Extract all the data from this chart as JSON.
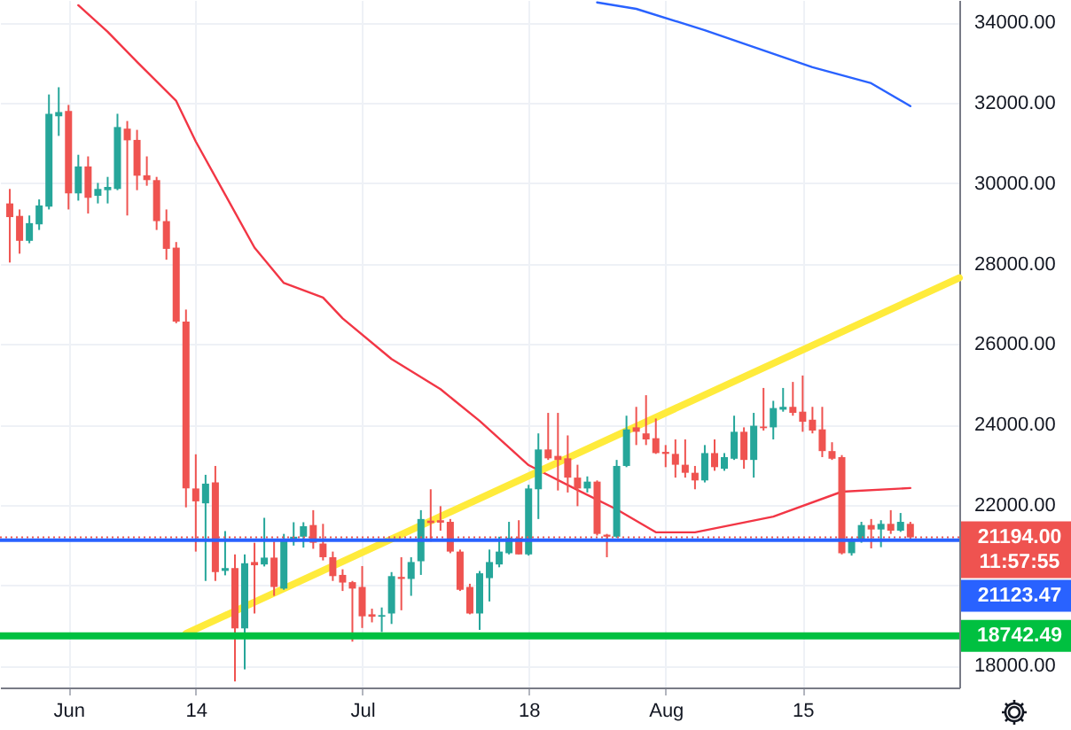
{
  "chart_data": {
    "type": "candlestick",
    "x": [
      "--05-26",
      "--05-27",
      "--05-28",
      "--05-29",
      "--05-30",
      "--05-31",
      "--06-01",
      "--06-02",
      "--06-03",
      "--06-04",
      "--06-05",
      "--06-06",
      "--06-07",
      "--06-08",
      "--06-09",
      "--06-10",
      "--06-11",
      "--06-12",
      "--06-13",
      "--06-14",
      "--06-15",
      "--06-16",
      "--06-17",
      "--06-18",
      "--06-19",
      "--06-20",
      "--06-21",
      "--06-22",
      "--06-23",
      "--06-24",
      "--06-25",
      "--06-26",
      "--06-27",
      "--06-28",
      "--06-29",
      "--06-30",
      "--07-01",
      "--07-02",
      "--07-03",
      "--07-04",
      "--07-05",
      "--07-06",
      "--07-07",
      "--07-08",
      "--07-09",
      "--07-10",
      "--07-11",
      "--07-12",
      "--07-13",
      "--07-14",
      "--07-15",
      "--07-16",
      "--07-17",
      "--07-18",
      "--07-19",
      "--07-20",
      "--07-21",
      "--07-22",
      "--07-23",
      "--07-24",
      "--07-25",
      "--07-26",
      "--07-27",
      "--07-28",
      "--07-29",
      "--07-30",
      "--07-31",
      "--08-01",
      "--08-02",
      "--08-03",
      "--08-04",
      "--08-05",
      "--08-06",
      "--08-07",
      "--08-08",
      "--08-09",
      "--08-10",
      "--08-11",
      "--08-12",
      "--08-13",
      "--08-14",
      "--08-15",
      "--08-16",
      "--08-17",
      "--08-18",
      "--08-19",
      "--08-20",
      "--08-21",
      "--08-22",
      "--08-23",
      "--08-24",
      "--08-25",
      "--08-26"
    ],
    "ohlc": [
      [
        29500,
        29860,
        28030,
        29160
      ],
      [
        29190,
        29350,
        28250,
        28570
      ],
      [
        28570,
        29200,
        28510,
        29010
      ],
      [
        28980,
        29600,
        28840,
        29450
      ],
      [
        29420,
        32210,
        29350,
        31730
      ],
      [
        31670,
        32390,
        31180,
        31770
      ],
      [
        31800,
        31950,
        29350,
        29750
      ],
      [
        29750,
        30710,
        29570,
        30420
      ],
      [
        30420,
        30670,
        29250,
        29640
      ],
      [
        29690,
        30010,
        29500,
        29860
      ],
      [
        29830,
        30160,
        29500,
        29910
      ],
      [
        29860,
        31730,
        29830,
        31400
      ],
      [
        31360,
        31550,
        29200,
        31070
      ],
      [
        31080,
        31330,
        29830,
        30190
      ],
      [
        30200,
        30670,
        29940,
        30080
      ],
      [
        30080,
        30160,
        28840,
        29060
      ],
      [
        29060,
        29350,
        28100,
        28370
      ],
      [
        28400,
        28540,
        26520,
        26560
      ],
      [
        26560,
        26860,
        21940,
        22410
      ],
      [
        22410,
        23260,
        20840,
        22090
      ],
      [
        22040,
        22750,
        20110,
        22530
      ],
      [
        22560,
        22970,
        20110,
        20330
      ],
      [
        20360,
        21350,
        20250,
        20430
      ],
      [
        20430,
        20770,
        17610,
        18930
      ],
      [
        18930,
        20770,
        17910,
        20550
      ],
      [
        20580,
        21060,
        19300,
        20500
      ],
      [
        20520,
        21680,
        20470,
        20690
      ],
      [
        20690,
        21090,
        19740,
        19960
      ],
      [
        19920,
        21280,
        19890,
        21130
      ],
      [
        21090,
        21570,
        20990,
        21210
      ],
      [
        21210,
        21570,
        20940,
        21470
      ],
      [
        21500,
        21870,
        20910,
        21060
      ],
      [
        21040,
        21530,
        20620,
        20700
      ],
      [
        20700,
        20840,
        20110,
        20230
      ],
      [
        20260,
        20400,
        19860,
        20070
      ],
      [
        20080,
        20110,
        18600,
        19920
      ],
      [
        19960,
        20480,
        18940,
        19230
      ],
      [
        19280,
        19420,
        19080,
        19220
      ],
      [
        19220,
        19450,
        18840,
        19260
      ],
      [
        19300,
        20330,
        19040,
        20230
      ],
      [
        20210,
        20700,
        19380,
        20160
      ],
      [
        20160,
        20700,
        19740,
        20580
      ],
      [
        20600,
        21870,
        20260,
        21650
      ],
      [
        21610,
        22390,
        21090,
        21550
      ],
      [
        21620,
        21970,
        21360,
        21560
      ],
      [
        21580,
        21650,
        20800,
        20840
      ],
      [
        20840,
        20890,
        19860,
        19890
      ],
      [
        19960,
        20040,
        19280,
        19300
      ],
      [
        19300,
        20360,
        18890,
        20300
      ],
      [
        20180,
        20890,
        19600,
        20580
      ],
      [
        20520,
        21210,
        20450,
        20840
      ],
      [
        20800,
        21580,
        20770,
        21180
      ],
      [
        21180,
        21620,
        20770,
        20770
      ],
      [
        20770,
        22500,
        20740,
        22410
      ],
      [
        22390,
        23780,
        21650,
        23380
      ],
      [
        23380,
        24290,
        23120,
        23160
      ],
      [
        23220,
        24290,
        22360,
        23120
      ],
      [
        23160,
        23730,
        22310,
        22680
      ],
      [
        22680,
        23000,
        21970,
        22410
      ],
      [
        22410,
        22710,
        22310,
        22580
      ],
      [
        22580,
        22610,
        21240,
        21280
      ],
      [
        21260,
        21280,
        20700,
        21210
      ],
      [
        21210,
        23120,
        21180,
        22970
      ],
      [
        22970,
        24220,
        22940,
        23880
      ],
      [
        23930,
        24440,
        23490,
        23820
      ],
      [
        23780,
        24730,
        23490,
        23630
      ],
      [
        23660,
        24150,
        23270,
        23290
      ],
      [
        23320,
        23490,
        22940,
        23270
      ],
      [
        23270,
        23630,
        22680,
        23000
      ],
      [
        23000,
        23630,
        22680,
        22800
      ],
      [
        22800,
        22970,
        22390,
        22610
      ],
      [
        22610,
        23490,
        22560,
        23290
      ],
      [
        23290,
        23630,
        22850,
        22940
      ],
      [
        22900,
        23290,
        22850,
        23190
      ],
      [
        23150,
        24220,
        23120,
        23820
      ],
      [
        23820,
        23930,
        22900,
        23120
      ],
      [
        23120,
        24290,
        22680,
        23970
      ],
      [
        23950,
        24910,
        23850,
        23910
      ],
      [
        23930,
        24590,
        23630,
        24410
      ],
      [
        24370,
        24910,
        24320,
        24440
      ],
      [
        24440,
        25060,
        24220,
        24290
      ],
      [
        24320,
        25220,
        23820,
        24070
      ],
      [
        24120,
        24440,
        23780,
        23850
      ],
      [
        23880,
        24440,
        23190,
        23340
      ],
      [
        23340,
        23560,
        23120,
        23150
      ],
      [
        23190,
        23240,
        20770,
        20800
      ],
      [
        20800,
        21180,
        20740,
        21140
      ],
      [
        21140,
        21580,
        21060,
        21500
      ],
      [
        21500,
        21650,
        20920,
        21390
      ],
      [
        21390,
        21620,
        20950,
        21530
      ],
      [
        21530,
        21870,
        21280,
        21360
      ],
      [
        21360,
        21800,
        21330,
        21580
      ],
      [
        21530,
        21580,
        21140,
        21194
      ]
    ],
    "colors": [
      "#ef5350",
      "#ef5350",
      "#26a69a",
      "#26a69a",
      "#26a69a",
      "#26a69a",
      "#ef5350",
      "#26a69a",
      "#ef5350",
      "#26a69a",
      "#26a69a",
      "#26a69a",
      "#ef5350",
      "#ef5350",
      "#ef5350",
      "#ef5350",
      "#ef5350",
      "#ef5350",
      "#ef5350",
      "#ef5350",
      "#26a69a",
      "#ef5350",
      "#26a69a",
      "#ef5350",
      "#26a69a",
      "#ef5350",
      "#26a69a",
      "#ef5350",
      "#26a69a",
      "#26a69a",
      "#26a69a",
      "#ef5350",
      "#ef5350",
      "#ef5350",
      "#ef5350",
      "#ef5350",
      "#ef5350",
      "#ef5350",
      "#26a69a",
      "#26a69a",
      "#ef5350",
      "#26a69a",
      "#26a69a",
      "#ef5350",
      "#ef5350",
      "#ef5350",
      "#ef5350",
      "#ef5350",
      "#26a69a",
      "#26a69a",
      "#26a69a",
      "#26a69a",
      "#ef5350",
      "#26a69a",
      "#26a69a",
      "#ef5350",
      "#ef5350",
      "#ef5350",
      "#ef5350",
      "#26a69a",
      "#ef5350",
      "#ef5350",
      "#26a69a",
      "#26a69a",
      "#ef5350",
      "#ef5350",
      "#ef5350",
      "#ef5350",
      "#ef5350",
      "#ef5350",
      "#ef5350",
      "#26a69a",
      "#ef5350",
      "#26a69a",
      "#26a69a",
      "#ef5350",
      "#26a69a",
      "#ef5350",
      "#26a69a",
      "#26a69a",
      "#ef5350",
      "#ef5350",
      "#ef5350",
      "#ef5350",
      "#ef5350",
      "#ef5350",
      "#26a69a",
      "#26a69a",
      "#ef5350",
      "#26a69a",
      "#ef5350",
      "#26a69a",
      "#ef5350"
    ],
    "series": [
      {
        "type": "line",
        "color": "#f23645",
        "x": [
          "--06-02",
          "--06-05",
          "--06-08",
          "--06-12",
          "--06-14",
          "--06-17",
          "--06-20",
          "--06-23",
          "--06-27",
          "--06-29",
          "--07-04",
          "--07-09",
          "--07-13",
          "--07-18",
          "--07-23",
          "--07-27",
          "--07-31",
          "--08-04",
          "--08-12",
          "--08-19",
          "--08-26"
        ],
        "values": [
          34430,
          33770,
          33020,
          32050,
          31040,
          29720,
          28400,
          27520,
          27160,
          26640,
          25630,
          24880,
          24090,
          22990,
          22370,
          21890,
          21320,
          21320,
          21710,
          22330,
          22420
        ]
      },
      {
        "type": "line",
        "color": "#2962ff",
        "x": [
          "--07-25",
          "--07-29",
          "--08-05",
          "--08-16",
          "--08-22",
          "--08-26"
        ],
        "values": [
          34500,
          34340,
          33810,
          32890,
          32490,
          31920
        ]
      },
      {
        "type": "line",
        "color": "#ffeb3b",
        "x": [
          "--06-13",
          "--08-31"
        ],
        "values": [
          18800,
          27650
        ]
      }
    ],
    "xlim": [
      "--05-25",
      "--08-31"
    ],
    "xticks": [
      {
        "value": "--06-01",
        "label": "Jun"
      },
      {
        "value": "--06-14",
        "label": "14"
      },
      {
        "value": "--07-01",
        "label": "Jul"
      },
      {
        "value": "--07-18",
        "label": "18"
      },
      {
        "value": "--08-01",
        "label": "Aug"
      },
      {
        "value": "--08-15",
        "label": "15"
      }
    ],
    "ylim": [
      17460,
      34560
    ],
    "yticks": [
      {
        "value": 18000,
        "label": "18000.00"
      },
      {
        "value": 20000,
        "label": null
      },
      {
        "value": 22000,
        "label": "22000.00"
      },
      {
        "value": 24000,
        "label": "24000.00"
      },
      {
        "value": 26000,
        "label": "26000.00"
      },
      {
        "value": 28000,
        "label": "28000.00"
      },
      {
        "value": 30000,
        "label": "30000.00"
      },
      {
        "value": 32000,
        "label": "32000.00"
      },
      {
        "value": 34000,
        "label": "34000.00"
      }
    ],
    "grid": true,
    "ref_lines": [
      {
        "axis": "y",
        "value": 21194,
        "label": "21194.00",
        "color": "#ef5350",
        "line_style": "dotted"
      },
      {
        "axis": "y",
        "value": 21123.47,
        "label": "21123.47",
        "color": "#2962ff",
        "line_style": "solid"
      },
      {
        "axis": "y",
        "value": 18742.49,
        "label": "18742.49",
        "color": "#00c040",
        "line_style": "solid"
      }
    ],
    "annotations": [
      "11:57:55"
    ]
  }
}
